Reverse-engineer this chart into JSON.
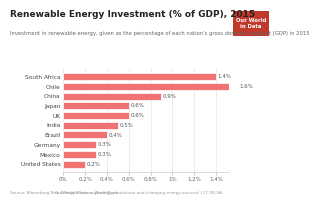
{
  "title": "Renewable Energy Investment (% of GDP), 2015",
  "subtitle": "Investment in renewable energy, given as the percentage of each nation's gross domestic product (GDP) in 2015",
  "countries": [
    "South Africa",
    "Chile",
    "China",
    "Japan",
    "UK",
    "India",
    "Brazil",
    "Germany",
    "Mexico",
    "United States"
  ],
  "values": [
    1.4,
    1.6,
    0.9,
    0.6,
    0.6,
    0.5,
    0.4,
    0.3,
    0.3,
    0.2
  ],
  "bar_color": "#f07272",
  "background_color": "#ffffff",
  "plot_bg_color": "#f9f9f9",
  "xlabel_ticks": [
    0,
    0.2,
    0.4,
    0.6,
    0.8,
    1.0,
    1.2,
    1.4
  ],
  "xlabel_labels": [
    "0%",
    "0.2%",
    "0.4%",
    "0.6%",
    "0.8%",
    "1%",
    "1.2%",
    "1.4%"
  ],
  "xlim": [
    0,
    1.52
  ],
  "source_text": "Source: Bloomberg New Energy Finance, World Bank",
  "owid_text": "OurWorldInData.org/energy-production-and-changing-energy-sources/ | CC BY-SA",
  "logo_text": "Our World\nin Data",
  "logo_bg": "#c0392b",
  "title_fontsize": 6.5,
  "subtitle_fontsize": 3.8,
  "label_fontsize": 4.2,
  "tick_fontsize": 4.0,
  "footer_fontsize": 3.0,
  "value_fontsize": 4.0
}
